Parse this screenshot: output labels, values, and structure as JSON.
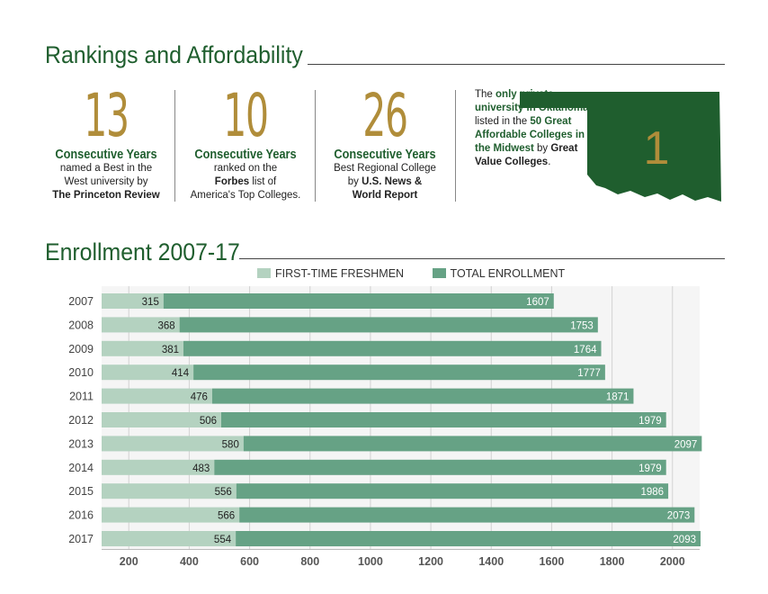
{
  "colors": {
    "green_dark": "#1f5e2e",
    "gold": "#b08d3a",
    "freshmen": "#b4d2c0",
    "total": "#66a285"
  },
  "rankings": {
    "title": "Rankings and Affordability",
    "stats": [
      {
        "number": "13",
        "heading": "Consecutive Years",
        "line1": "named a Best in the",
        "line2": "West university by",
        "line3": "The Princeton Review"
      },
      {
        "number": "10",
        "heading": "Consecutive Years",
        "line1": "ranked on the",
        "line2_bold": "Forbes",
        "line2_rest": " list of",
        "line3": "America's Top Colleges."
      },
      {
        "number": "26",
        "heading": "Consecutive Years",
        "line1": "Best Regional College",
        "line2_pre": "by ",
        "line2_bold": "U.S. News &",
        "line3": "World Report"
      }
    ],
    "oklahoma": {
      "t1": "The ",
      "t2": "only private university in Oklahoma",
      "t3": " listed in the ",
      "t4": "50 Great Affordable Colleges in the Midwest",
      "t5": " by ",
      "t6": "Great Value Colleges",
      "t7": ".",
      "map_number": "1"
    }
  },
  "enrollment": {
    "title": "Enrollment 2007-17",
    "legend": [
      "FIRST-TIME FRESHMEN",
      "TOTAL ENROLLMENT"
    ]
  },
  "chart_data": {
    "type": "bar",
    "orientation": "horizontal",
    "categories": [
      "2007",
      "2008",
      "2009",
      "2010",
      "2011",
      "2012",
      "2013",
      "2014",
      "2015",
      "2016",
      "2017"
    ],
    "series": [
      {
        "name": "FIRST-TIME FRESHMEN",
        "values": [
          315,
          368,
          381,
          414,
          476,
          506,
          580,
          483,
          556,
          566,
          554
        ]
      },
      {
        "name": "TOTAL ENROLLMENT",
        "values": [
          1607,
          1753,
          1764,
          1777,
          1871,
          1979,
          2097,
          1979,
          1986,
          2073,
          2093
        ]
      }
    ],
    "xticks": [
      200,
      400,
      600,
      800,
      1000,
      1200,
      1400,
      1600,
      1800,
      2000
    ],
    "xlim": [
      110,
      2090
    ],
    "grid": true,
    "legend_position": "top"
  }
}
